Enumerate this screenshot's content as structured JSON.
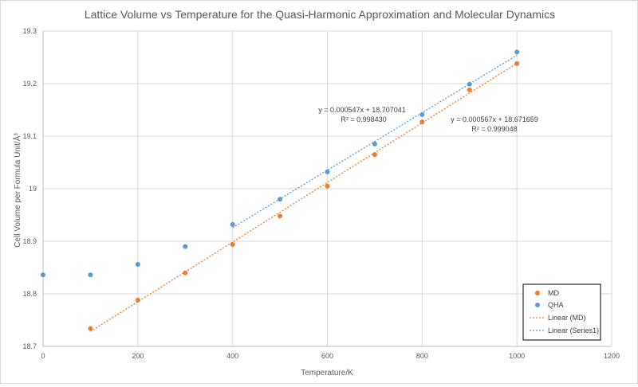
{
  "chart_data": {
    "type": "scatter",
    "title": "Lattice Volume vs Temperature for the Quasi-Harmonic Approximation and Molecular Dynamics",
    "xlabel": "Temperature/K",
    "ylabel": "Cell Volume per Formula Unit/Å³",
    "xlim": [
      0,
      1200
    ],
    "ylim": [
      18.7,
      19.3
    ],
    "xticks": [
      0,
      200,
      400,
      600,
      800,
      1000,
      1200
    ],
    "yticks": [
      18.7,
      18.8,
      18.9,
      19,
      19.1,
      19.2,
      19.3
    ],
    "xtick_labels": [
      "0",
      "200",
      "400",
      "600",
      "800",
      "1000",
      "1200"
    ],
    "ytick_labels": [
      "18.7",
      "18.8",
      "18.9",
      "19",
      "19.1",
      "19.2",
      "19.3"
    ],
    "grid": true,
    "legend_position": "bottom-right",
    "series": [
      {
        "name": "MD",
        "color": "#ed7d31",
        "x": [
          100,
          200,
          300,
          400,
          500,
          600,
          700,
          800,
          900,
          1000
        ],
        "y": [
          18.734,
          18.788,
          18.84,
          18.894,
          18.948,
          19.005,
          19.065,
          19.127,
          19.188,
          19.238
        ]
      },
      {
        "name": "QHA",
        "color": "#5b9bd5",
        "x": [
          0,
          100,
          200,
          300,
          400,
          500,
          600,
          700,
          800,
          900,
          1000
        ],
        "y": [
          18.836,
          18.836,
          18.856,
          18.89,
          18.932,
          18.98,
          19.032,
          19.085,
          19.141,
          19.199,
          19.26
        ]
      }
    ],
    "trendlines": [
      {
        "name": "Linear (MD)",
        "color": "#ed7d31",
        "slope": 0.000567,
        "intercept": 18.671659,
        "x_range": [
          100,
          1000
        ],
        "equation": "y = 0.000567x + 18.671659",
        "r2": "R² = 0.999048"
      },
      {
        "name": "Linear (Series1)",
        "color": "#5b9bd5",
        "slope": 0.000547,
        "intercept": 18.707041,
        "x_range": [
          400,
          1000
        ],
        "equation": "y = 0.000547x + 18.707041",
        "r2": "R² = 0.998430"
      }
    ]
  }
}
